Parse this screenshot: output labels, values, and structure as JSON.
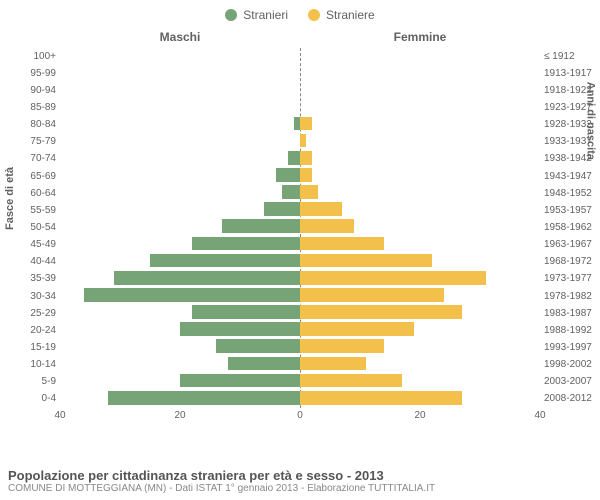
{
  "legend": {
    "male_label": "Stranieri",
    "female_label": "Straniere",
    "male_color": "#77a477",
    "female_color": "#f3c04b"
  },
  "columns": {
    "left_title": "Maschi",
    "right_title": "Femmine"
  },
  "y_title_left": "Fasce di età",
  "y_title_right": "Anni di nascita",
  "footer": {
    "title": "Popolazione per cittadinanza straniera per età e sesso - 2013",
    "subtitle": "COMUNE DI MOTTEGGIANA (MN) - Dati ISTAT 1° gennaio 2013 - Elaborazione TUTTITALIA.IT"
  },
  "x_axis": {
    "max": 40,
    "ticks": [
      40,
      20,
      0,
      20,
      40
    ]
  },
  "pyramid": {
    "type": "population-pyramid",
    "male_color": "#77a477",
    "female_color": "#f3c04b",
    "rows": [
      {
        "age": "100+",
        "year": "≤ 1912",
        "male": 0,
        "female": 0
      },
      {
        "age": "95-99",
        "year": "1913-1917",
        "male": 0,
        "female": 0
      },
      {
        "age": "90-94",
        "year": "1918-1922",
        "male": 0,
        "female": 0
      },
      {
        "age": "85-89",
        "year": "1923-1927",
        "male": 0,
        "female": 0
      },
      {
        "age": "80-84",
        "year": "1928-1932",
        "male": 1,
        "female": 2
      },
      {
        "age": "75-79",
        "year": "1933-1937",
        "male": 0,
        "female": 1
      },
      {
        "age": "70-74",
        "year": "1938-1942",
        "male": 2,
        "female": 2
      },
      {
        "age": "65-69",
        "year": "1943-1947",
        "male": 4,
        "female": 2
      },
      {
        "age": "60-64",
        "year": "1948-1952",
        "male": 3,
        "female": 3
      },
      {
        "age": "55-59",
        "year": "1953-1957",
        "male": 6,
        "female": 7
      },
      {
        "age": "50-54",
        "year": "1958-1962",
        "male": 13,
        "female": 9
      },
      {
        "age": "45-49",
        "year": "1963-1967",
        "male": 18,
        "female": 14
      },
      {
        "age": "40-44",
        "year": "1968-1972",
        "male": 25,
        "female": 22
      },
      {
        "age": "35-39",
        "year": "1973-1977",
        "male": 31,
        "female": 31
      },
      {
        "age": "30-34",
        "year": "1978-1982",
        "male": 36,
        "female": 24
      },
      {
        "age": "25-29",
        "year": "1983-1987",
        "male": 18,
        "female": 27
      },
      {
        "age": "20-24",
        "year": "1988-1992",
        "male": 20,
        "female": 19
      },
      {
        "age": "15-19",
        "year": "1993-1997",
        "male": 14,
        "female": 14
      },
      {
        "age": "10-14",
        "year": "1998-2002",
        "male": 12,
        "female": 11
      },
      {
        "age": "5-9",
        "year": "2003-2007",
        "male": 20,
        "female": 17
      },
      {
        "age": "0-4",
        "year": "2008-2012",
        "male": 32,
        "female": 27
      }
    ]
  }
}
